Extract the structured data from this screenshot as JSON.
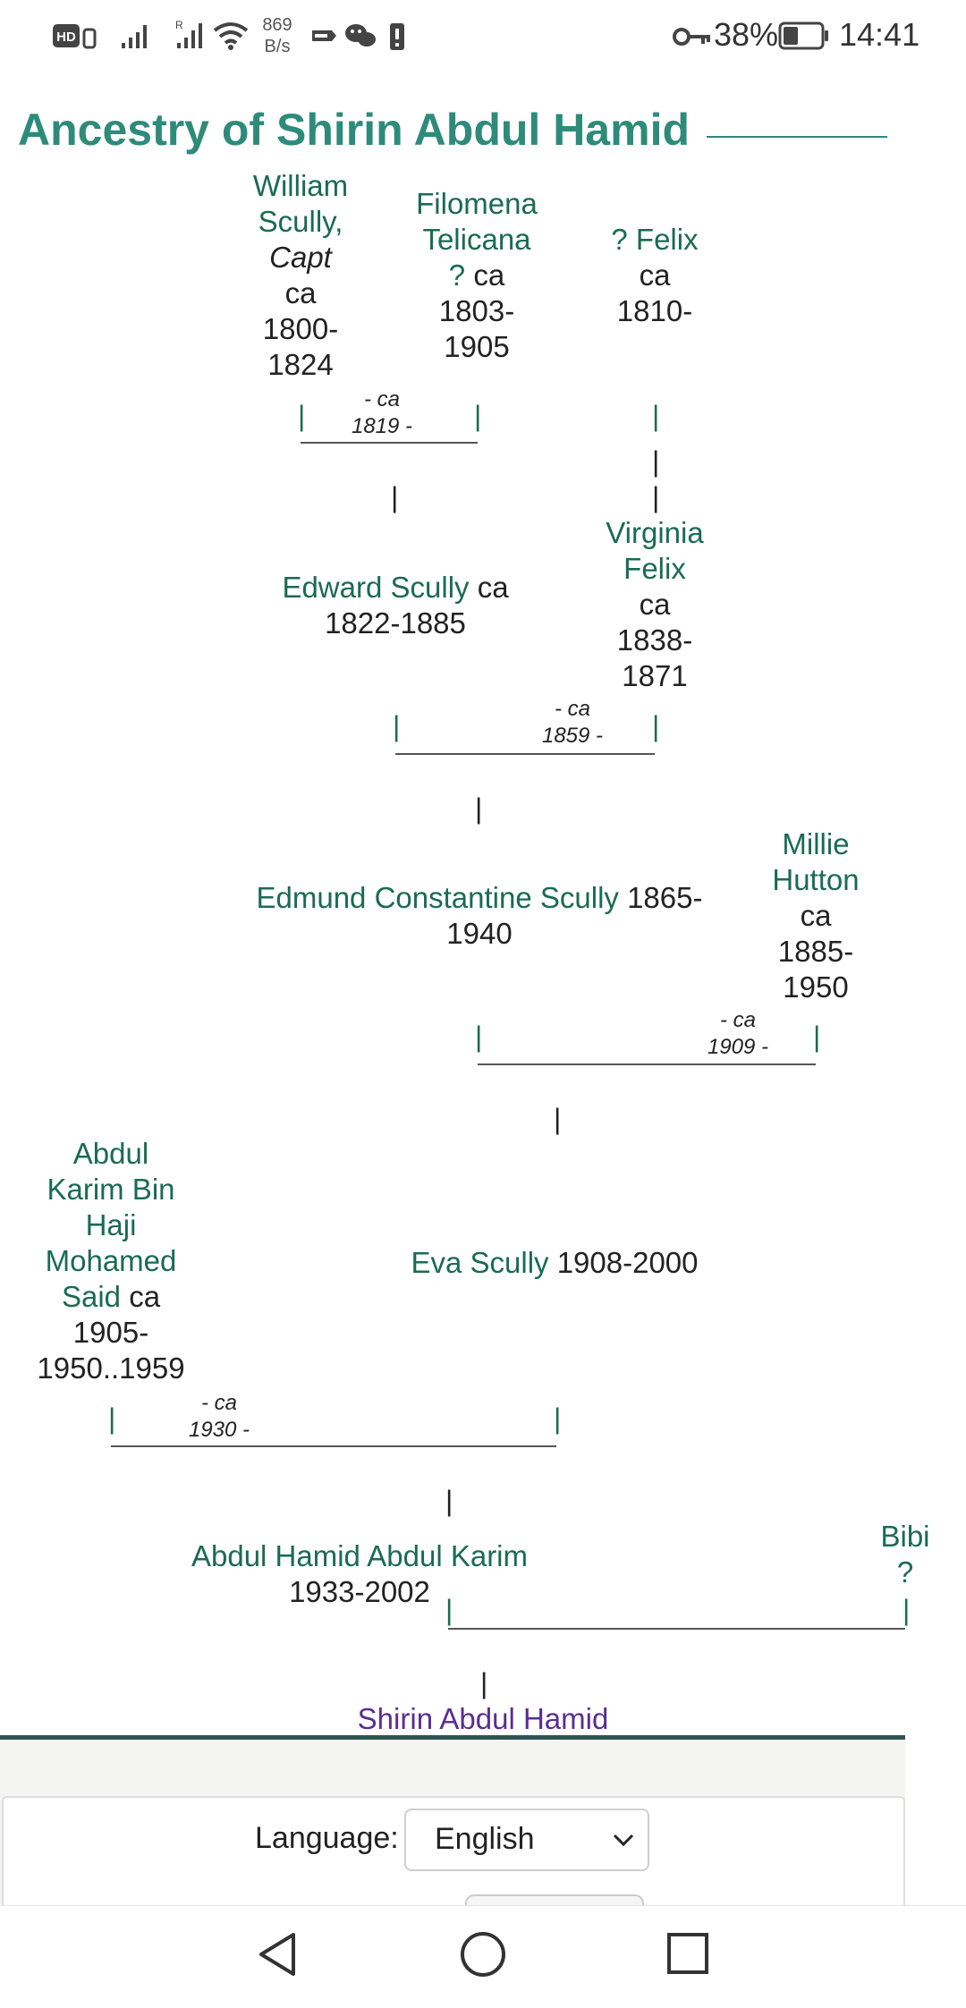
{
  "status_bar": {
    "network_speed_value": "869",
    "network_speed_unit": "B/s",
    "battery_percent": "38%",
    "time": "14:41"
  },
  "page": {
    "title": "Ancestry of Shirin Abdul Hamid"
  },
  "tree": {
    "william": {
      "name_line1": "William",
      "name_line2": "Scully,",
      "title": "Capt",
      "dates_line1": "ca",
      "dates_line2": "1800-",
      "dates_line3": "1824"
    },
    "filomena": {
      "name_line1": "Filomena",
      "name_line2": "Telicana",
      "name_line3": "?",
      "dates_line1": "ca",
      "dates_line2": "1803-",
      "dates_line3": "1905"
    },
    "felix": {
      "name": "? Felix",
      "dates_line1": "ca",
      "dates_line2": "1810-"
    },
    "marriage1": {
      "line1": "- ca",
      "line2": "1819 -"
    },
    "edward": {
      "name": "Edward Scully",
      "dates_line1": "ca",
      "dates_line2": "1822-1885"
    },
    "virginia": {
      "name_line1": "Virginia",
      "name_line2": "Felix",
      "dates_line1": "ca",
      "dates_line2": "1838-",
      "dates_line3": "1871"
    },
    "marriage2": {
      "line1": "- ca",
      "line2": "1859 -"
    },
    "edmund": {
      "name": "Edmund Constantine Scully",
      "dates_line1": "1865-",
      "dates_line2": "1940"
    },
    "millie": {
      "name_line1": "Millie",
      "name_line2": "Hutton",
      "dates_line1": "ca",
      "dates_line2": "1885-",
      "dates_line3": "1950"
    },
    "marriage3": {
      "line1": "- ca",
      "line2": "1909 -"
    },
    "abdul_karim": {
      "name_line1": "Abdul",
      "name_line2": "Karim Bin",
      "name_line3": "Haji",
      "name_line4": "Mohamed",
      "name_line5": "Said",
      "dates_line1": "ca",
      "dates_line2": "1905-",
      "dates_line3": "1950..1959"
    },
    "eva": {
      "name": "Eva Scully",
      "dates": "1908-2000"
    },
    "marriage4": {
      "line1": "- ca",
      "line2": "1930 -"
    },
    "abdul_hamid": {
      "name": "Abdul Hamid Abdul Karim",
      "dates": "1933-2002"
    },
    "bibi": {
      "name_line1": "Bibi",
      "name_line2": "?"
    },
    "shirin": {
      "name": "Shirin Abdul Hamid"
    },
    "tick": "|"
  },
  "footer": {
    "language_label": "Language:",
    "language_value": "English"
  },
  "colors": {
    "title": "#2e8b7a",
    "person_link": "#1a6b52",
    "self": "#5a2e91"
  }
}
